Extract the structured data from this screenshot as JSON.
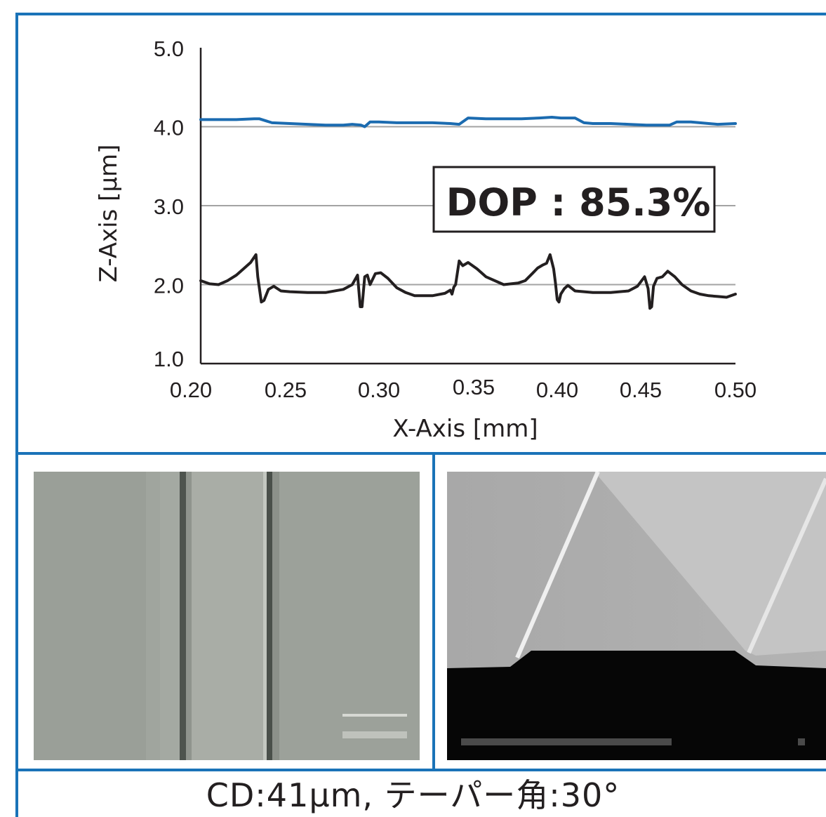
{
  "chart_data": {
    "type": "line",
    "xlabel": "X-Axis [mm]",
    "ylabel": "Z-Axis [µm]",
    "xlim": [
      0.2,
      0.5
    ],
    "ylim": [
      1.0,
      5.0
    ],
    "x_ticks": [
      "0.20",
      "0.25",
      "0.30",
      "0.35",
      "0.40",
      "0.45",
      "0.50"
    ],
    "y_ticks": [
      "1.0",
      "2.0",
      "3.0",
      "4.0",
      "5.0"
    ],
    "grid": "horizontal",
    "annotation": "DOP : 85.3%",
    "series": [
      {
        "color": "#1b6bb0",
        "x": [
          0.2,
          0.21,
          0.22,
          0.23,
          0.233,
          0.24,
          0.25,
          0.26,
          0.27,
          0.28,
          0.285,
          0.29,
          0.292,
          0.295,
          0.3,
          0.31,
          0.32,
          0.33,
          0.34,
          0.345,
          0.35,
          0.36,
          0.37,
          0.38,
          0.39,
          0.397,
          0.402,
          0.41,
          0.415,
          0.42,
          0.43,
          0.44,
          0.45,
          0.46,
          0.463,
          0.467,
          0.475,
          0.48,
          0.49,
          0.5
        ],
        "values": [
          4.09,
          4.09,
          4.09,
          4.1,
          4.1,
          4.05,
          4.04,
          4.03,
          4.02,
          4.02,
          4.03,
          4.02,
          4.0,
          4.06,
          4.06,
          4.05,
          4.05,
          4.05,
          4.04,
          4.03,
          4.11,
          4.1,
          4.1,
          4.1,
          4.11,
          4.12,
          4.11,
          4.11,
          4.05,
          4.04,
          4.04,
          4.03,
          4.02,
          4.02,
          4.02,
          4.06,
          4.06,
          4.05,
          4.03,
          4.04
        ]
      },
      {
        "color": "#231f20",
        "x": [
          0.2,
          0.205,
          0.21,
          0.215,
          0.22,
          0.224,
          0.228,
          0.231,
          0.232,
          0.234,
          0.2355,
          0.238,
          0.241,
          0.245,
          0.25,
          0.26,
          0.27,
          0.28,
          0.285,
          0.288,
          0.2895,
          0.2905,
          0.292,
          0.2935,
          0.295,
          0.298,
          0.301,
          0.305,
          0.31,
          0.315,
          0.32,
          0.33,
          0.337,
          0.34,
          0.341,
          0.342,
          0.343,
          0.345,
          0.347,
          0.35,
          0.355,
          0.36,
          0.37,
          0.378,
          0.382,
          0.386,
          0.389,
          0.392,
          0.394,
          0.396,
          0.398,
          0.399,
          0.4,
          0.401,
          0.402,
          0.404,
          0.406,
          0.41,
          0.42,
          0.43,
          0.44,
          0.445,
          0.449,
          0.451,
          0.452,
          0.453,
          0.454,
          0.456,
          0.459,
          0.462,
          0.466,
          0.47,
          0.475,
          0.48,
          0.485,
          0.49,
          0.495,
          0.5
        ],
        "values": [
          2.05,
          2.01,
          2.0,
          2.05,
          2.12,
          2.2,
          2.28,
          2.38,
          2.1,
          1.78,
          1.8,
          1.94,
          1.98,
          1.92,
          1.91,
          1.9,
          1.9,
          1.94,
          2.0,
          2.12,
          1.72,
          1.72,
          2.1,
          2.12,
          2.0,
          2.14,
          2.15,
          2.08,
          1.96,
          1.9,
          1.86,
          1.86,
          1.89,
          1.93,
          1.88,
          1.97,
          2.0,
          2.3,
          2.24,
          2.28,
          2.2,
          2.1,
          2.0,
          2.02,
          2.05,
          2.14,
          2.21,
          2.25,
          2.27,
          2.38,
          2.2,
          2.02,
          1.81,
          1.78,
          1.88,
          1.95,
          1.99,
          1.92,
          1.9,
          1.9,
          1.92,
          1.98,
          2.1,
          1.95,
          1.7,
          1.72,
          1.98,
          2.08,
          2.1,
          2.17,
          2.1,
          2.0,
          1.92,
          1.88,
          1.86,
          1.85,
          1.84,
          1.88
        ]
      }
    ]
  },
  "images": {
    "left_alt": "optical micrograph of line pattern",
    "right_alt": "SEM cross-section micrograph"
  },
  "caption": "CD:41µm, テーパー角:30°"
}
